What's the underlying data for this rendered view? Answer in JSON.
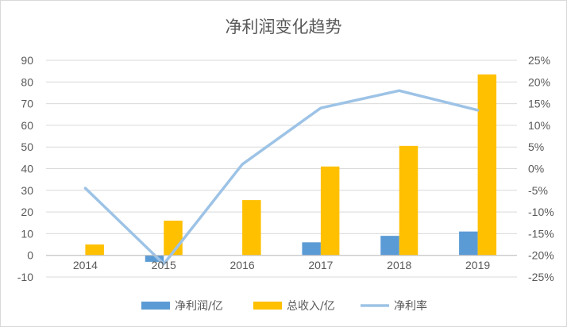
{
  "chart_data": {
    "type": "bar",
    "title": "净利润变化趋势",
    "categories": [
      "2014",
      "2015",
      "2016",
      "2017",
      "2018",
      "2019"
    ],
    "series": [
      {
        "name": "净利润/亿",
        "type": "bar",
        "axis": "left",
        "color": "#5b9bd5",
        "values": [
          0,
          -3,
          0,
          6,
          9,
          11
        ]
      },
      {
        "name": "总收入/亿",
        "type": "bar",
        "axis": "left",
        "color": "#ffc000",
        "values": [
          5,
          16,
          25.5,
          41,
          50.5,
          83.5
        ]
      },
      {
        "name": "净利率",
        "type": "line",
        "axis": "right",
        "color": "#9dc3e6",
        "values": [
          -4.5,
          -22,
          1,
          14,
          18,
          13.5
        ]
      }
    ],
    "y_left": {
      "min": -10,
      "max": 90,
      "step": 10,
      "ticks": [
        "-10",
        "0",
        "10",
        "20",
        "30",
        "40",
        "50",
        "60",
        "70",
        "80",
        "90"
      ]
    },
    "y_right": {
      "min": -25,
      "max": 25,
      "step": 5,
      "ticks": [
        "-25%",
        "-20%",
        "-15%",
        "-10%",
        "-5%",
        "0%",
        "5%",
        "10%",
        "15%",
        "20%",
        "25%"
      ]
    },
    "grid": true,
    "legend": "bottom"
  }
}
